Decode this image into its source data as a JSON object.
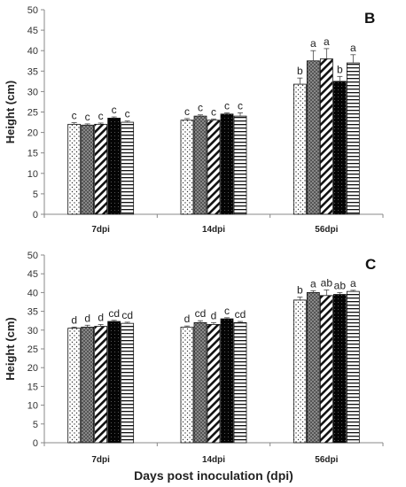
{
  "chart_data": [
    {
      "type": "bar",
      "panel_label": "B",
      "categories": [
        "7dpi",
        "14dpi",
        "56dpi"
      ],
      "ylabel": "Height (cm)",
      "xlabel": "",
      "ylim": [
        0,
        50
      ],
      "yticks": [
        0,
        5,
        10,
        15,
        20,
        25,
        30,
        35,
        40,
        45,
        50
      ],
      "patterns": [
        "dots",
        "crosshatch",
        "diagonal",
        "solid-black",
        "horizontal"
      ],
      "series": [
        {
          "values": [
            22.0,
            23.0,
            31.8
          ],
          "errors": [
            0.4,
            0.4,
            1.5
          ],
          "letters": [
            "c",
            "c",
            "b"
          ]
        },
        {
          "values": [
            21.8,
            24.0,
            37.5
          ],
          "errors": [
            0.3,
            0.3,
            2.5
          ],
          "letters": [
            "c",
            "c",
            "a"
          ]
        },
        {
          "values": [
            22.0,
            23.0,
            38.0
          ],
          "errors": [
            0.3,
            0.3,
            2.5
          ],
          "letters": [
            "c",
            "c",
            "a"
          ]
        },
        {
          "values": [
            23.5,
            24.5,
            32.5
          ],
          "errors": [
            0.3,
            0.3,
            1.2
          ],
          "letters": [
            "c",
            "c",
            "b"
          ]
        },
        {
          "values": [
            22.5,
            24.0,
            37.0
          ],
          "errors": [
            0.3,
            0.8,
            2.0
          ],
          "letters": [
            "c",
            "c",
            "a"
          ]
        }
      ]
    },
    {
      "type": "bar",
      "panel_label": "C",
      "categories": [
        "7dpi",
        "14dpi",
        "56dpi"
      ],
      "ylabel": "Height (cm)",
      "xlabel": "Days post inoculation (dpi)",
      "ylim": [
        0,
        50
      ],
      "yticks": [
        0,
        5,
        10,
        15,
        20,
        25,
        30,
        35,
        40,
        45,
        50
      ],
      "patterns": [
        "dots",
        "crosshatch",
        "diagonal",
        "solid-black",
        "horizontal"
      ],
      "series": [
        {
          "values": [
            30.5,
            30.8,
            38.0
          ],
          "errors": [
            0.3,
            0.3,
            0.8
          ],
          "letters": [
            "d",
            "d",
            "b"
          ]
        },
        {
          "values": [
            30.8,
            32.0,
            40.0
          ],
          "errors": [
            0.5,
            0.5,
            0.5
          ],
          "letters": [
            "d",
            "cd",
            "a"
          ]
        },
        {
          "values": [
            31.0,
            31.5,
            39.2
          ],
          "errors": [
            0.5,
            0.5,
            1.5
          ],
          "letters": [
            "d",
            "d",
            "ab"
          ]
        },
        {
          "values": [
            32.3,
            33.0,
            39.5
          ],
          "errors": [
            0.3,
            0.3,
            0.5
          ],
          "letters": [
            "cd",
            "c",
            "ab"
          ]
        },
        {
          "values": [
            31.8,
            32.0,
            40.3
          ],
          "errors": [
            0.3,
            0.3,
            0.3
          ],
          "letters": [
            "cd",
            "cd",
            "a"
          ]
        }
      ]
    }
  ]
}
